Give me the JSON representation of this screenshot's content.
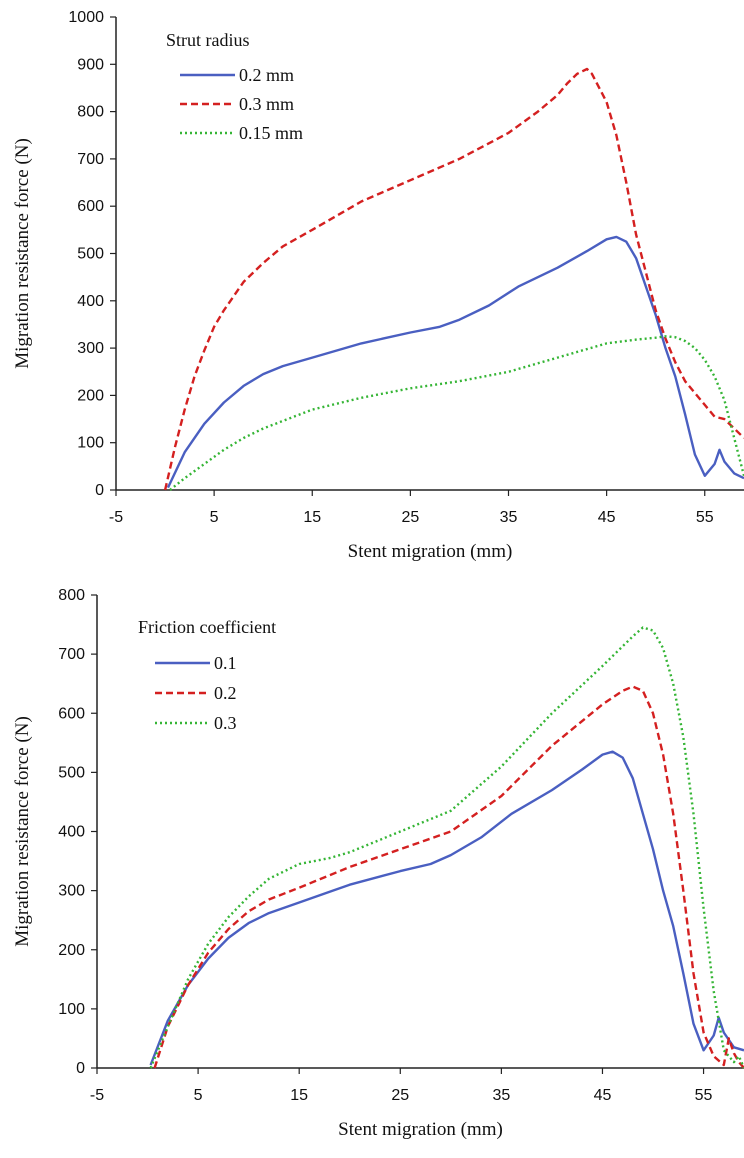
{
  "chart_data": [
    {
      "type": "line",
      "title": "",
      "xlabel": "Stent migration (mm)",
      "ylabel": "Migration resistance force (N)",
      "xlim": [
        -5,
        59
      ],
      "ylim": [
        0,
        1000
      ],
      "xticks": [
        -5,
        5,
        15,
        25,
        35,
        45,
        55
      ],
      "yticks": [
        0,
        100,
        200,
        300,
        400,
        500,
        600,
        700,
        800,
        900,
        1000
      ],
      "xtick_labels": [
        "-5",
        "5",
        "15",
        "25",
        "35",
        "45",
        "55"
      ],
      "ytick_labels": [
        "0",
        "100",
        "200",
        "300",
        "400",
        "500",
        "600",
        "700",
        "800",
        "900",
        "1000"
      ],
      "grid": false,
      "legend": {
        "title": "Strut radius",
        "position": "top-left"
      },
      "series": [
        {
          "name": "0.2 mm",
          "color": "#4a5fc1",
          "style": "solid",
          "x": [
            0.3,
            2,
            4,
            6,
            8,
            10,
            12,
            15,
            20,
            25,
            28,
            30,
            33,
            36,
            40,
            43,
            45,
            46,
            47,
            48,
            49,
            50,
            51,
            52,
            53,
            54,
            55,
            56,
            56.5,
            57,
            58,
            59
          ],
          "y": [
            5,
            80,
            140,
            185,
            220,
            245,
            262,
            280,
            310,
            333,
            345,
            360,
            390,
            430,
            470,
            505,
            530,
            535,
            525,
            490,
            430,
            370,
            300,
            240,
            160,
            75,
            30,
            55,
            85,
            60,
            35,
            25
          ]
        },
        {
          "name": "0.3 mm",
          "color": "#d42020",
          "style": "dashed",
          "x": [
            0,
            1,
            2,
            3,
            4,
            5,
            6,
            8,
            10,
            12,
            15,
            20,
            25,
            30,
            35,
            38,
            40,
            41,
            42,
            43,
            43.5,
            44,
            45,
            46,
            47,
            48,
            49,
            50,
            51,
            52,
            53,
            54,
            55,
            56,
            57,
            58,
            59
          ],
          "y": [
            0,
            90,
            170,
            240,
            295,
            345,
            380,
            440,
            480,
            515,
            550,
            610,
            655,
            700,
            755,
            800,
            835,
            860,
            880,
            890,
            880,
            860,
            820,
            750,
            650,
            540,
            460,
            380,
            320,
            270,
            230,
            205,
            180,
            155,
            150,
            130,
            110
          ]
        },
        {
          "name": "0.15 mm",
          "color": "#35b535",
          "style": "dotted",
          "x": [
            0.5,
            2,
            4,
            6,
            8,
            10,
            15,
            20,
            25,
            30,
            35,
            40,
            45,
            48,
            50,
            51,
            52,
            53,
            54,
            55,
            56,
            57,
            58,
            59
          ],
          "y": [
            0,
            25,
            55,
            85,
            110,
            130,
            170,
            195,
            215,
            230,
            250,
            280,
            310,
            318,
            322,
            325,
            323,
            315,
            300,
            275,
            240,
            190,
            110,
            30
          ]
        }
      ]
    },
    {
      "type": "line",
      "title": "",
      "xlabel": "Stent migration (mm)",
      "ylabel": "Migration resistance force (N)",
      "xlim": [
        -5,
        59
      ],
      "ylim": [
        0,
        800
      ],
      "xticks": [
        -5,
        5,
        15,
        25,
        35,
        45,
        55
      ],
      "yticks": [
        0,
        100,
        200,
        300,
        400,
        500,
        600,
        700,
        800
      ],
      "xtick_labels": [
        "-5",
        "5",
        "15",
        "25",
        "35",
        "45",
        "55"
      ],
      "ytick_labels": [
        "0",
        "100",
        "200",
        "300",
        "400",
        "500",
        "600",
        "700",
        "800"
      ],
      "grid": false,
      "legend": {
        "title": "Friction coefficient",
        "position": "top-left"
      },
      "series": [
        {
          "name": "0.1",
          "color": "#4a5fc1",
          "style": "solid",
          "x": [
            0.3,
            2,
            4,
            6,
            8,
            10,
            12,
            15,
            20,
            25,
            28,
            30,
            33,
            36,
            40,
            43,
            45,
            46,
            47,
            48,
            49,
            50,
            51,
            52,
            53,
            54,
            55,
            56,
            56.5,
            57,
            58,
            59
          ],
          "y": [
            5,
            80,
            140,
            185,
            220,
            245,
            262,
            280,
            310,
            333,
            345,
            360,
            390,
            430,
            470,
            505,
            530,
            535,
            525,
            490,
            430,
            370,
            300,
            240,
            160,
            75,
            30,
            55,
            85,
            60,
            35,
            30
          ]
        },
        {
          "name": "0.2",
          "color": "#d42020",
          "style": "dashed",
          "x": [
            0.7,
            2,
            4,
            6,
            8,
            10,
            12,
            15,
            20,
            25,
            30,
            35,
            40,
            45,
            47,
            48,
            49,
            50,
            51,
            52,
            53,
            54,
            55,
            56,
            57,
            57.5,
            58,
            58.5,
            59
          ],
          "y": [
            0,
            70,
            140,
            195,
            235,
            265,
            285,
            305,
            340,
            370,
            400,
            460,
            545,
            615,
            638,
            645,
            638,
            600,
            530,
            430,
            300,
            160,
            60,
            20,
            5,
            50,
            25,
            10,
            0
          ]
        },
        {
          "name": "0.3",
          "color": "#35b535",
          "style": "dotted",
          "x": [
            0.3,
            2,
            4,
            6,
            8,
            10,
            12,
            15,
            18,
            20,
            25,
            30,
            35,
            40,
            45,
            48,
            49,
            50,
            51,
            52,
            53,
            54,
            55,
            56,
            57,
            58,
            58.5,
            59
          ],
          "y": [
            0,
            70,
            150,
            210,
            255,
            290,
            320,
            345,
            355,
            365,
            400,
            435,
            510,
            600,
            680,
            730,
            745,
            740,
            710,
            650,
            560,
            430,
            270,
            130,
            30,
            10,
            20,
            0
          ]
        }
      ]
    }
  ]
}
